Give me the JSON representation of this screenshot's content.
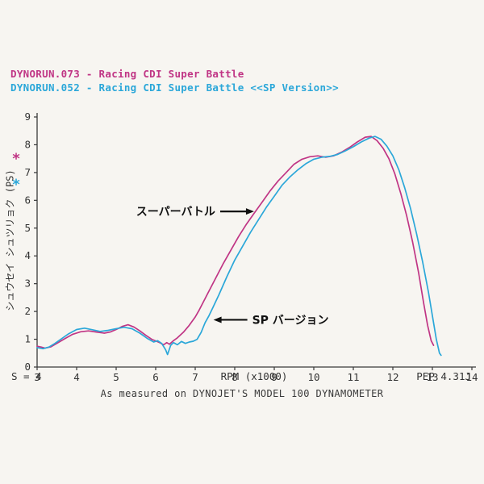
{
  "header": {
    "run1": "DYNORUN.073 - Racing CDI Super Battle",
    "run2": "DYNORUN.052 - Racing CDI Super Battle <<SP Version>>"
  },
  "footer": {
    "s_value": "S = 4",
    "version": "PEP 4.31J",
    "caption": "As measured on DYNOJET'S MODEL 100 DYNAMOMETER"
  },
  "colors": {
    "run1": "#c03585",
    "run2": "#2ba7d9",
    "axis": "#3a3a3a",
    "annotation": "#111111"
  },
  "chart_data": {
    "type": "line",
    "title": "",
    "xlabel": "RPM (x1000)",
    "ylabel": "シュウセイ シュツリョク (PS)",
    "xlim": [
      3,
      14
    ],
    "ylim": [
      0,
      9
    ],
    "x_ticks": [
      "3",
      "4",
      "5",
      "6",
      "7",
      "8",
      "9",
      "10",
      "11",
      "12",
      "13",
      "14"
    ],
    "y_ticks": [
      "0",
      "1",
      "2",
      "3",
      "4",
      "5",
      "6",
      "7",
      "8",
      "9"
    ],
    "grid": false,
    "legend_markers": [
      {
        "symbol": "*",
        "series": "run1",
        "color": "#c03585"
      },
      {
        "symbol": "*",
        "series": "run2",
        "color": "#2ba7d9"
      }
    ],
    "series": [
      {
        "name": "DYNORUN.073 - Racing CDI Super Battle",
        "key": "run1",
        "color": "#c03585",
        "points": [
          [
            3.0,
            0.75
          ],
          [
            3.1,
            0.72
          ],
          [
            3.2,
            0.68
          ],
          [
            3.35,
            0.73
          ],
          [
            3.5,
            0.85
          ],
          [
            3.7,
            1.02
          ],
          [
            3.9,
            1.18
          ],
          [
            4.1,
            1.27
          ],
          [
            4.3,
            1.3
          ],
          [
            4.5,
            1.26
          ],
          [
            4.7,
            1.22
          ],
          [
            4.85,
            1.26
          ],
          [
            5.0,
            1.35
          ],
          [
            5.15,
            1.46
          ],
          [
            5.3,
            1.52
          ],
          [
            5.45,
            1.44
          ],
          [
            5.6,
            1.3
          ],
          [
            5.75,
            1.14
          ],
          [
            5.9,
            1.0
          ],
          [
            6.0,
            0.94
          ],
          [
            6.1,
            0.88
          ],
          [
            6.2,
            0.8
          ],
          [
            6.28,
            0.88
          ],
          [
            6.35,
            0.82
          ],
          [
            6.45,
            0.95
          ],
          [
            6.55,
            1.05
          ],
          [
            6.7,
            1.25
          ],
          [
            6.85,
            1.5
          ],
          [
            7.0,
            1.8
          ],
          [
            7.1,
            2.05
          ],
          [
            7.3,
            2.6
          ],
          [
            7.5,
            3.15
          ],
          [
            7.7,
            3.7
          ],
          [
            7.9,
            4.2
          ],
          [
            8.1,
            4.7
          ],
          [
            8.3,
            5.15
          ],
          [
            8.5,
            5.55
          ],
          [
            8.7,
            5.95
          ],
          [
            8.9,
            6.35
          ],
          [
            9.1,
            6.7
          ],
          [
            9.3,
            7.0
          ],
          [
            9.5,
            7.3
          ],
          [
            9.7,
            7.48
          ],
          [
            9.9,
            7.57
          ],
          [
            10.1,
            7.6
          ],
          [
            10.3,
            7.55
          ],
          [
            10.5,
            7.6
          ],
          [
            10.7,
            7.73
          ],
          [
            10.9,
            7.9
          ],
          [
            11.1,
            8.1
          ],
          [
            11.3,
            8.27
          ],
          [
            11.45,
            8.3
          ],
          [
            11.6,
            8.15
          ],
          [
            11.75,
            7.88
          ],
          [
            11.9,
            7.5
          ],
          [
            12.05,
            6.95
          ],
          [
            12.2,
            6.25
          ],
          [
            12.35,
            5.45
          ],
          [
            12.5,
            4.5
          ],
          [
            12.65,
            3.4
          ],
          [
            12.78,
            2.3
          ],
          [
            12.88,
            1.5
          ],
          [
            12.97,
            0.95
          ],
          [
            13.03,
            0.78
          ]
        ]
      },
      {
        "name": "DYNORUN.052 - Racing CDI Super Battle <<SP Version>>",
        "key": "run2",
        "color": "#2ba7d9",
        "points": [
          [
            3.0,
            0.7
          ],
          [
            3.15,
            0.66
          ],
          [
            3.3,
            0.72
          ],
          [
            3.45,
            0.85
          ],
          [
            3.6,
            1.0
          ],
          [
            3.8,
            1.2
          ],
          [
            4.0,
            1.35
          ],
          [
            4.2,
            1.4
          ],
          [
            4.4,
            1.34
          ],
          [
            4.6,
            1.28
          ],
          [
            4.8,
            1.32
          ],
          [
            5.0,
            1.38
          ],
          [
            5.2,
            1.43
          ],
          [
            5.4,
            1.38
          ],
          [
            5.6,
            1.22
          ],
          [
            5.8,
            1.02
          ],
          [
            5.95,
            0.9
          ],
          [
            6.05,
            0.95
          ],
          [
            6.15,
            0.85
          ],
          [
            6.25,
            0.62
          ],
          [
            6.3,
            0.45
          ],
          [
            6.38,
            0.78
          ],
          [
            6.45,
            0.88
          ],
          [
            6.55,
            0.8
          ],
          [
            6.65,
            0.92
          ],
          [
            6.75,
            0.85
          ],
          [
            6.85,
            0.9
          ],
          [
            6.95,
            0.93
          ],
          [
            7.05,
            1.0
          ],
          [
            7.15,
            1.25
          ],
          [
            7.25,
            1.6
          ],
          [
            7.35,
            1.85
          ],
          [
            7.45,
            2.15
          ],
          [
            7.6,
            2.6
          ],
          [
            7.8,
            3.25
          ],
          [
            8.0,
            3.85
          ],
          [
            8.2,
            4.35
          ],
          [
            8.4,
            4.85
          ],
          [
            8.6,
            5.3
          ],
          [
            8.8,
            5.75
          ],
          [
            9.0,
            6.15
          ],
          [
            9.2,
            6.55
          ],
          [
            9.4,
            6.85
          ],
          [
            9.6,
            7.1
          ],
          [
            9.8,
            7.32
          ],
          [
            10.0,
            7.48
          ],
          [
            10.2,
            7.55
          ],
          [
            10.4,
            7.58
          ],
          [
            10.6,
            7.65
          ],
          [
            10.8,
            7.78
          ],
          [
            11.0,
            7.93
          ],
          [
            11.2,
            8.1
          ],
          [
            11.4,
            8.24
          ],
          [
            11.55,
            8.3
          ],
          [
            11.7,
            8.2
          ],
          [
            11.85,
            7.95
          ],
          [
            12.0,
            7.6
          ],
          [
            12.15,
            7.1
          ],
          [
            12.3,
            6.45
          ],
          [
            12.45,
            5.7
          ],
          [
            12.6,
            4.8
          ],
          [
            12.75,
            3.8
          ],
          [
            12.9,
            2.7
          ],
          [
            13.0,
            1.85
          ],
          [
            13.1,
            1.0
          ],
          [
            13.18,
            0.5
          ],
          [
            13.22,
            0.42
          ]
        ]
      }
    ],
    "annotations": [
      {
        "label": "スーパーバトル",
        "arrow": "right",
        "x": 8.55,
        "y": 5.6
      },
      {
        "label": "SP バージョン",
        "arrow": "left",
        "x": 7.4,
        "y": 1.7
      }
    ]
  }
}
